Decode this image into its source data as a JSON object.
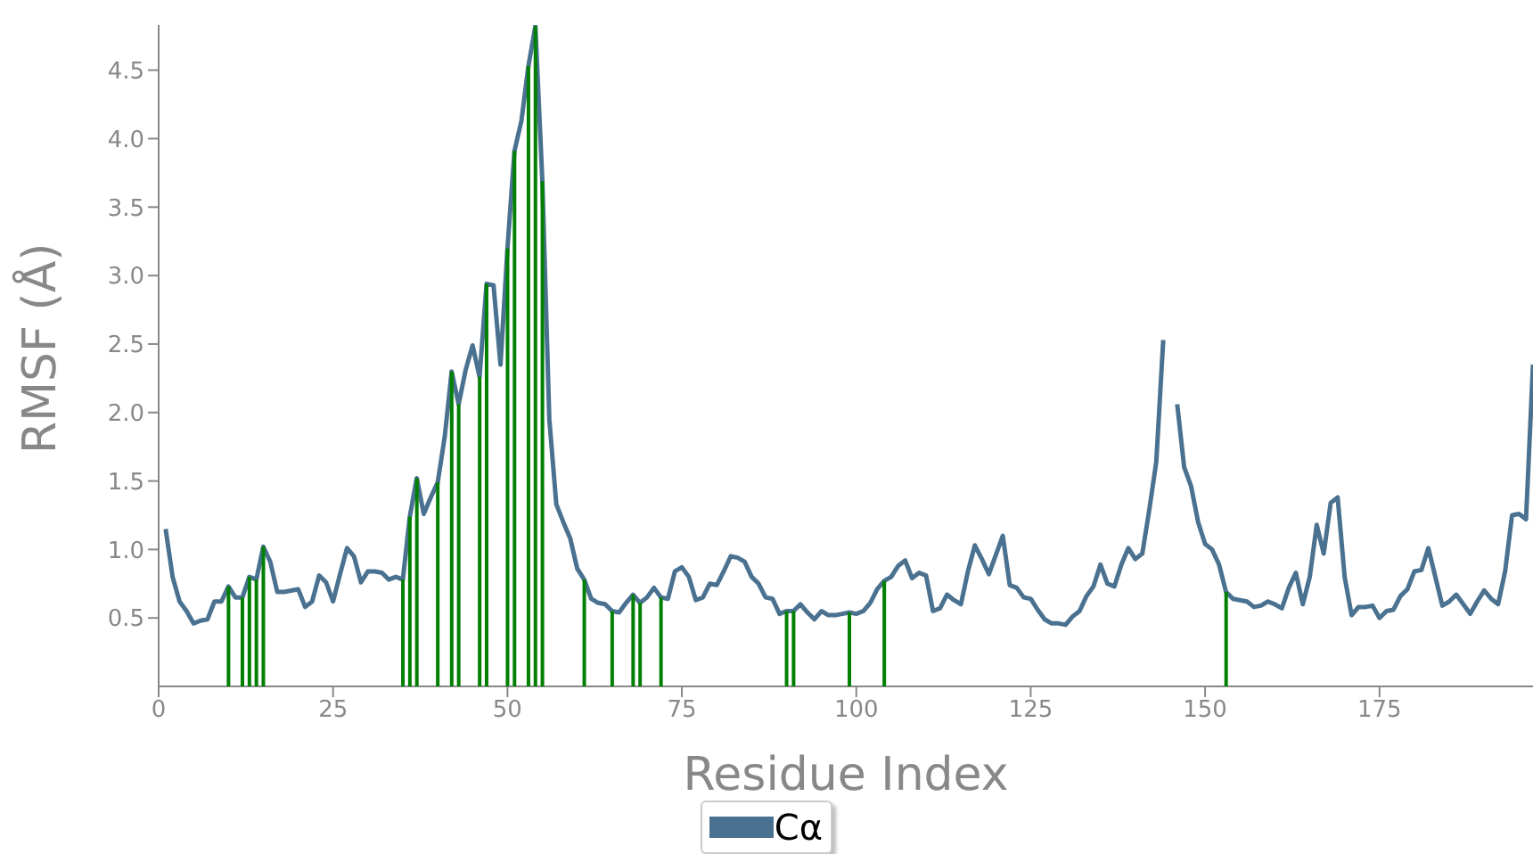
{
  "chart_data": {
    "type": "line",
    "xlabel": "Residue Index",
    "ylabel": "RMSF (Å)",
    "legend": "bottom",
    "xlim": [
      0,
      197
    ],
    "ylim": [
      0,
      4.83
    ],
    "xticks": [
      0,
      25,
      50,
      75,
      100,
      125,
      150,
      175
    ],
    "yticks": [
      0.5,
      {
        "value": 1,
        "label": "1.0"
      },
      1.5,
      {
        "value": 2,
        "label": "2.0"
      },
      2.5,
      {
        "value": 3,
        "label": "3.0"
      },
      3.5,
      {
        "value": 4,
        "label": "4.0"
      },
      4.5
    ],
    "x": [
      1,
      2,
      3,
      4,
      5,
      6,
      7,
      8,
      9,
      10,
      11,
      12,
      13,
      14,
      15,
      16,
      17,
      18,
      19,
      20,
      21,
      22,
      23,
      24,
      25,
      26,
      27,
      28,
      29,
      30,
      31,
      32,
      33,
      34,
      35,
      36,
      37,
      38,
      39,
      40,
      41,
      42,
      43,
      44,
      45,
      46,
      47,
      48,
      49,
      50,
      51,
      52,
      53,
      54,
      55,
      56,
      57,
      58,
      59,
      60,
      61,
      62,
      63,
      64,
      65,
      66,
      67,
      68,
      69,
      70,
      71,
      72,
      73,
      74,
      75,
      76,
      77,
      78,
      79,
      80,
      81,
      82,
      83,
      84,
      85,
      86,
      87,
      88,
      89,
      90,
      91,
      92,
      93,
      94,
      95,
      96,
      97,
      98,
      99,
      100,
      101,
      102,
      103,
      104,
      105,
      106,
      107,
      108,
      109,
      110,
      111,
      112,
      113,
      114,
      115,
      116,
      117,
      118,
      119,
      120,
      121,
      122,
      123,
      124,
      125,
      126,
      127,
      128,
      129,
      130,
      131,
      132,
      133,
      134,
      135,
      136,
      137,
      138,
      139,
      140,
      141,
      142,
      143,
      144,
      145,
      146,
      147,
      148,
      149,
      150,
      151,
      152,
      153,
      154,
      155,
      156,
      157,
      158,
      159,
      160,
      161,
      162,
      163,
      164,
      165,
      166,
      167,
      168,
      169,
      170,
      171,
      172,
      173,
      174,
      175,
      176,
      177,
      178,
      179,
      180,
      181,
      182,
      183,
      184,
      185,
      186,
      187,
      188,
      189,
      190,
      191,
      192,
      193,
      194,
      195,
      196,
      197
    ],
    "series": [
      {
        "type": "bar",
        "color": "#008000",
        "x": [
          10,
          12,
          13,
          14,
          15,
          35,
          36,
          37,
          40,
          42,
          43,
          46,
          47,
          50,
          51,
          53,
          54,
          55,
          61,
          65,
          68,
          69,
          72,
          90,
          91,
          99,
          104,
          153
        ],
        "values": [
          0.73,
          0.65,
          0.8,
          0.78,
          1.02,
          0.78,
          1.24,
          1.52,
          1.49,
          2.3,
          2.06,
          2.26,
          2.94,
          3.2,
          3.91,
          4.53,
          4.82,
          3.69,
          0.78,
          0.55,
          0.67,
          0.61,
          0.65,
          0.55,
          0.55,
          0.54,
          0.77,
          0.69
        ]
      },
      {
        "name": "Cα",
        "color": "#4a7290",
        "values": [
          1.15,
          0.8,
          0.62,
          0.55,
          0.46,
          0.48,
          0.49,
          0.62,
          0.62,
          0.73,
          0.65,
          0.65,
          0.8,
          0.78,
          1.02,
          0.91,
          0.69,
          0.69,
          0.7,
          0.71,
          0.58,
          0.62,
          0.81,
          0.76,
          0.62,
          0.82,
          1.01,
          0.95,
          0.76,
          0.84,
          0.84,
          0.83,
          0.78,
          0.8,
          0.78,
          1.24,
          1.52,
          1.26,
          1.38,
          1.49,
          1.82,
          2.3,
          2.06,
          2.31,
          2.49,
          2.26,
          2.94,
          2.93,
          2.35,
          3.2,
          3.91,
          4.13,
          4.53,
          4.82,
          3.69,
          1.95,
          1.33,
          1.2,
          1.08,
          0.86,
          0.78,
          0.64,
          0.61,
          0.6,
          0.55,
          0.54,
          0.61,
          0.67,
          0.61,
          0.65,
          0.72,
          0.65,
          0.64,
          0.84,
          0.87,
          0.8,
          0.63,
          0.65,
          0.75,
          0.74,
          0.84,
          0.95,
          0.94,
          0.91,
          0.8,
          0.75,
          0.65,
          0.64,
          0.53,
          0.55,
          0.55,
          0.6,
          0.54,
          0.49,
          0.55,
          0.52,
          0.52,
          0.53,
          0.54,
          0.53,
          0.55,
          0.61,
          0.71,
          0.77,
          0.8,
          0.88,
          0.92,
          0.79,
          0.83,
          0.81,
          0.55,
          0.57,
          0.67,
          0.63,
          0.6,
          0.84,
          1.03,
          0.93,
          0.82,
          0.96,
          1.1,
          0.74,
          0.72,
          0.65,
          0.64,
          0.56,
          0.49,
          0.46,
          0.46,
          0.45,
          0.51,
          0.55,
          0.66,
          0.73,
          0.89,
          0.75,
          0.73,
          0.89,
          1.01,
          0.93,
          0.97,
          1.29,
          1.64,
          2.53,
          null,
          2.06,
          1.6,
          1.46,
          1.2,
          1.04,
          1.0,
          0.89,
          0.69,
          0.64,
          0.63,
          0.62,
          0.58,
          0.59,
          0.62,
          0.6,
          0.57,
          0.72,
          0.83,
          0.6,
          0.8,
          1.18,
          0.97,
          1.34,
          1.38,
          0.8,
          0.52,
          0.58,
          0.58,
          0.59,
          0.5,
          0.55,
          0.56,
          0.66,
          0.71,
          0.84,
          0.85,
          1.01,
          0.8,
          0.59,
          0.62,
          0.67,
          0.6,
          0.53,
          0.62,
          0.7,
          0.64,
          0.6,
          0.84,
          1.25,
          1.26,
          1.22,
          2.35
        ]
      }
    ]
  }
}
